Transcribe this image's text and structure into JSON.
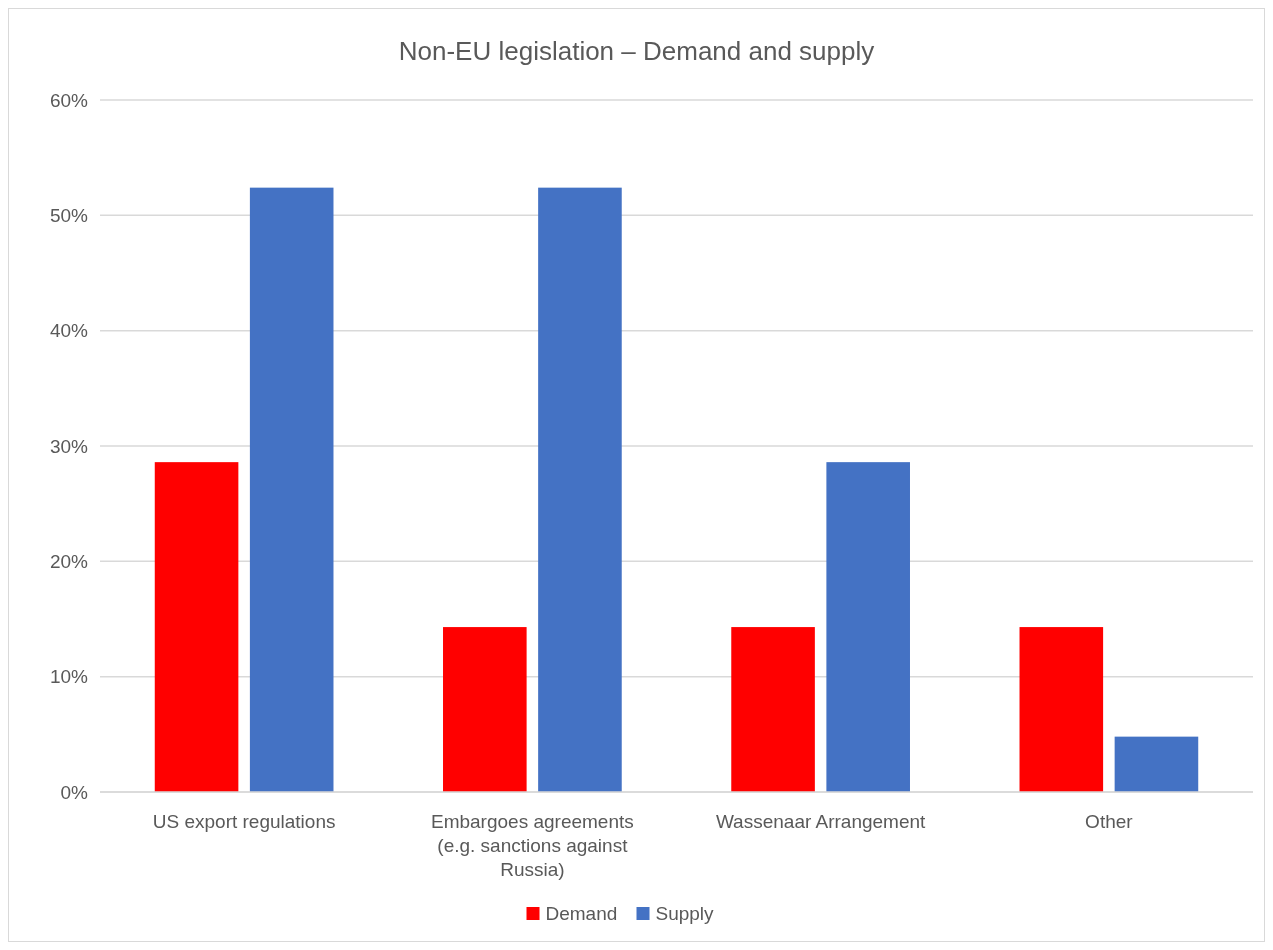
{
  "chart_data": {
    "type": "bar",
    "title": "Non-EU legislation – Demand and supply",
    "categories": [
      "US export regulations",
      "Embargoes agreements (e.g. sanctions against Russia)",
      "Wassenaar Arrangement",
      "Other"
    ],
    "series": [
      {
        "name": "Demand",
        "color": "#ff0000",
        "values": [
          28.6,
          14.3,
          14.3,
          14.3
        ]
      },
      {
        "name": "Supply",
        "color": "#4472c4",
        "values": [
          52.4,
          52.4,
          28.6,
          4.8
        ]
      }
    ],
    "ylim": [
      0,
      60
    ],
    "yticks": [
      {
        "value": 0,
        "label": "0%"
      },
      {
        "value": 10,
        "label": "10%"
      },
      {
        "value": 20,
        "label": "20%"
      },
      {
        "value": 30,
        "label": "30%"
      },
      {
        "value": 40,
        "label": "40%"
      },
      {
        "value": 50,
        "label": "50%"
      },
      {
        "value": 60,
        "label": "60%"
      }
    ],
    "grid": "y",
    "legend": "bottom"
  }
}
